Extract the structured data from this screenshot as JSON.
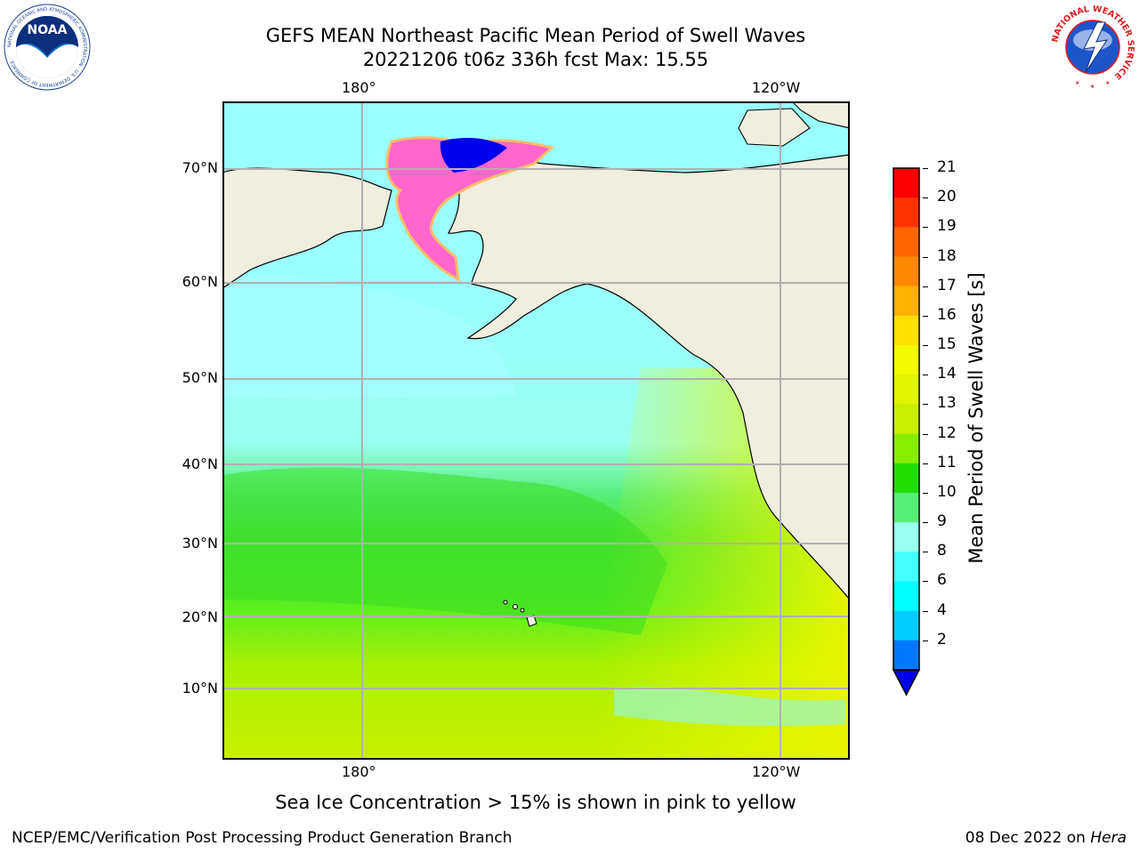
{
  "title_line1": "GEFS MEAN Northeast Pacific Mean Period of Swell Waves",
  "title_line2": "20221206 t06z 336h fcst   Max: 15.55",
  "top_lon_labels": [
    "180°",
    "120°W"
  ],
  "bottom_lon_labels": [
    "180°",
    "120°W"
  ],
  "lat_labels": [
    "70°N",
    "60°N",
    "50°N",
    "40°N",
    "30°N",
    "20°N",
    "10°N"
  ],
  "colorbar": {
    "label": "Mean Period of Swell Waves [s]",
    "ticks": [
      "21",
      "20",
      "19",
      "18",
      "17",
      "16",
      "15",
      "14",
      "13",
      "12",
      "11",
      "10",
      "9",
      "8",
      "6",
      "4",
      "2"
    ],
    "colors": [
      "#ff0000",
      "#ff3300",
      "#ff6600",
      "#ff8800",
      "#ffb000",
      "#ffe000",
      "#f4fa00",
      "#e0f500",
      "#c8f000",
      "#88ee00",
      "#22dd00",
      "#55ee77",
      "#99ffee",
      "#44ffff",
      "#00ffff",
      "#00ccff",
      "#0077ff"
    ],
    "extend_color": "#0000ee"
  },
  "note": "Sea Ice Concentration > 15% is shown in pink to yellow",
  "footer_left": "NCEP/EMC/Verification Post Processing Product Generation Branch",
  "footer_date": "08 Dec 2022 on ",
  "footer_machine": "Hera",
  "logos": {
    "noaa_text": "NOAA",
    "noaa_ring": "NATIONAL OCEANIC AND ATMOSPHERIC ADMINISTRATION · U.S. DEPARTMENT OF COMMERCE ·",
    "nws_ring": "NATIONAL WEATHER SERVICE"
  }
}
